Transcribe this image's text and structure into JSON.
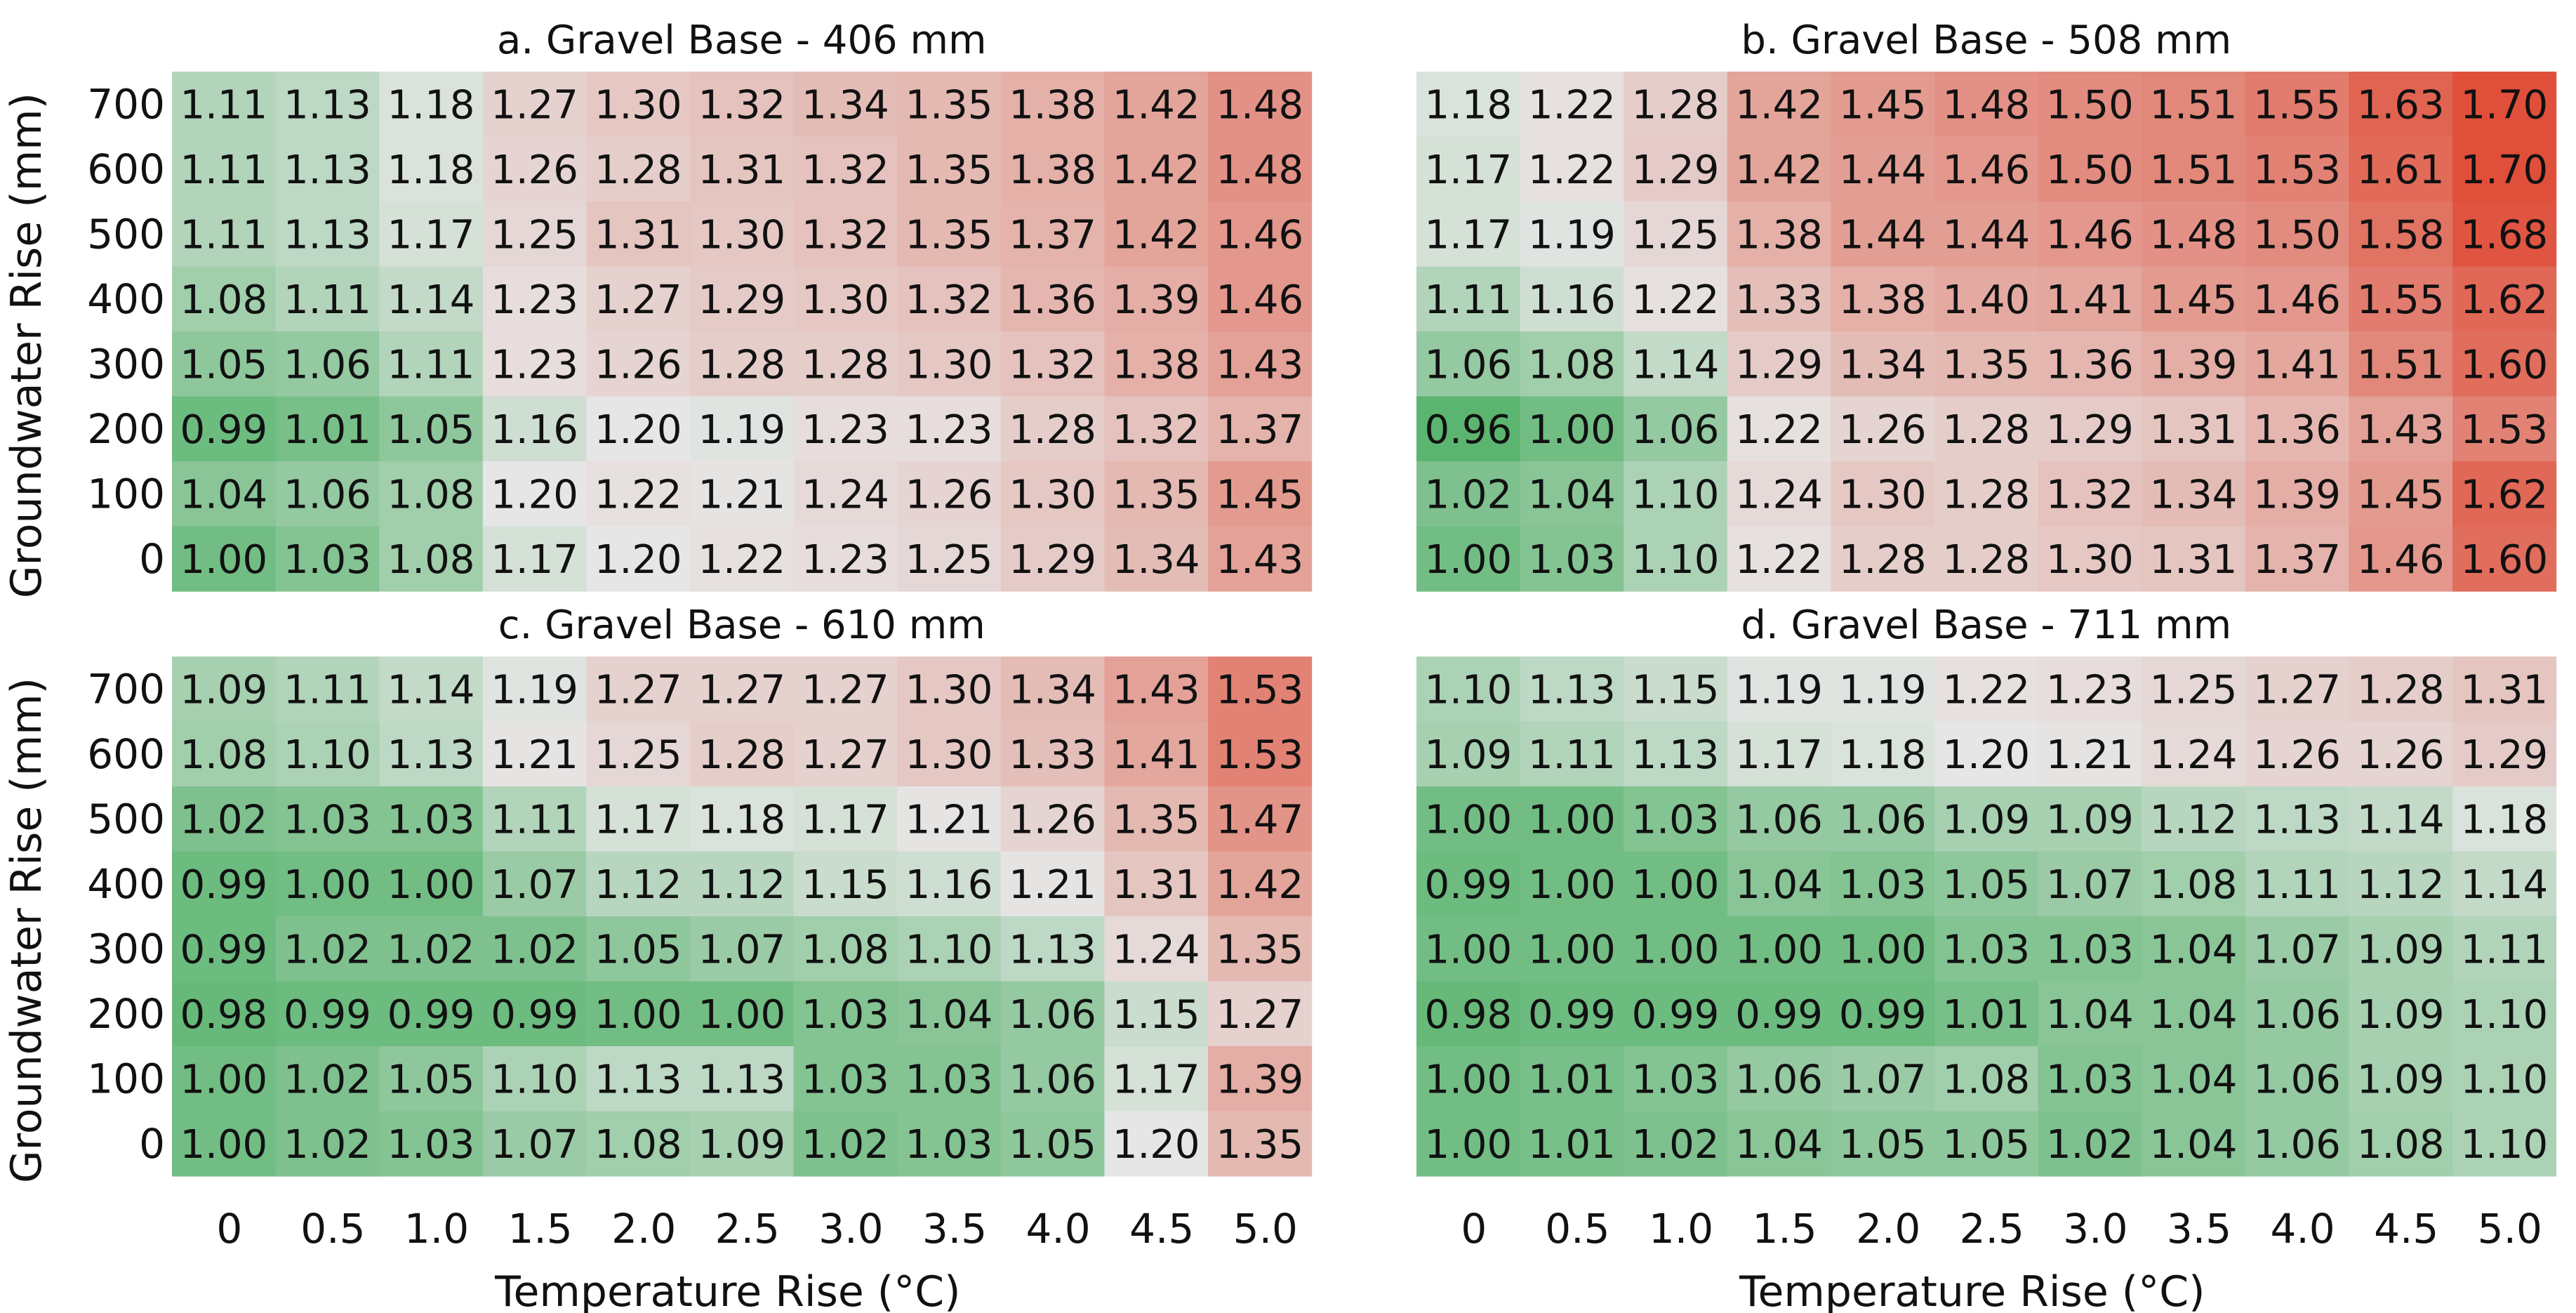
{
  "chart_data": [
    {
      "type": "heatmap",
      "title": "a. Gravel Base - 406 mm",
      "xlabel": "",
      "ylabel": "Groundwater Rise (mm)",
      "x": [
        "0",
        "0.5",
        "1.0",
        "1.5",
        "2.0",
        "2.5",
        "3.0",
        "3.5",
        "4.0",
        "4.5",
        "5.0"
      ],
      "y": [
        "700",
        "600",
        "500",
        "400",
        "300",
        "200",
        "100",
        "0"
      ],
      "values": [
        [
          "1.11",
          "1.13",
          "1.18",
          "1.27",
          "1.30",
          "1.32",
          "1.34",
          "1.35",
          "1.38",
          "1.42",
          "1.48"
        ],
        [
          "1.11",
          "1.13",
          "1.18",
          "1.26",
          "1.28",
          "1.31",
          "1.32",
          "1.35",
          "1.38",
          "1.42",
          "1.48"
        ],
        [
          "1.11",
          "1.13",
          "1.17",
          "1.25",
          "1.31",
          "1.30",
          "1.32",
          "1.35",
          "1.37",
          "1.42",
          "1.46"
        ],
        [
          "1.08",
          "1.11",
          "1.14",
          "1.23",
          "1.27",
          "1.29",
          "1.30",
          "1.32",
          "1.36",
          "1.39",
          "1.46"
        ],
        [
          "1.05",
          "1.06",
          "1.11",
          "1.23",
          "1.26",
          "1.28",
          "1.28",
          "1.30",
          "1.32",
          "1.38",
          "1.43"
        ],
        [
          "0.99",
          "1.01",
          "1.05",
          "1.16",
          "1.20",
          "1.19",
          "1.23",
          "1.23",
          "1.28",
          "1.32",
          "1.37"
        ],
        [
          "1.04",
          "1.06",
          "1.08",
          "1.20",
          "1.22",
          "1.21",
          "1.24",
          "1.26",
          "1.30",
          "1.35",
          "1.45"
        ],
        [
          "1.00",
          "1.03",
          "1.08",
          "1.17",
          "1.20",
          "1.22",
          "1.23",
          "1.25",
          "1.29",
          "1.34",
          "1.43"
        ]
      ]
    },
    {
      "type": "heatmap",
      "title": "b. Gravel Base - 508 mm",
      "xlabel": "",
      "ylabel": "",
      "x": [
        "0",
        "0.5",
        "1.0",
        "1.5",
        "2.0",
        "2.5",
        "3.0",
        "3.5",
        "4.0",
        "4.5",
        "5.0"
      ],
      "y": [
        "700",
        "600",
        "500",
        "400",
        "300",
        "200",
        "100",
        "0"
      ],
      "values": [
        [
          "1.18",
          "1.22",
          "1.28",
          "1.42",
          "1.45",
          "1.48",
          "1.50",
          "1.51",
          "1.55",
          "1.63",
          "1.70"
        ],
        [
          "1.17",
          "1.22",
          "1.29",
          "1.42",
          "1.44",
          "1.46",
          "1.50",
          "1.51",
          "1.53",
          "1.61",
          "1.70"
        ],
        [
          "1.17",
          "1.19",
          "1.25",
          "1.38",
          "1.44",
          "1.44",
          "1.46",
          "1.48",
          "1.50",
          "1.58",
          "1.68"
        ],
        [
          "1.11",
          "1.16",
          "1.22",
          "1.33",
          "1.38",
          "1.40",
          "1.41",
          "1.45",
          "1.46",
          "1.55",
          "1.62"
        ],
        [
          "1.06",
          "1.08",
          "1.14",
          "1.29",
          "1.34",
          "1.35",
          "1.36",
          "1.39",
          "1.41",
          "1.51",
          "1.60"
        ],
        [
          "0.96",
          "1.00",
          "1.06",
          "1.22",
          "1.26",
          "1.28",
          "1.29",
          "1.31",
          "1.36",
          "1.43",
          "1.53"
        ],
        [
          "1.02",
          "1.04",
          "1.10",
          "1.24",
          "1.30",
          "1.28",
          "1.32",
          "1.34",
          "1.39",
          "1.45",
          "1.62"
        ],
        [
          "1.00",
          "1.03",
          "1.10",
          "1.22",
          "1.28",
          "1.28",
          "1.30",
          "1.31",
          "1.37",
          "1.46",
          "1.60"
        ]
      ]
    },
    {
      "type": "heatmap",
      "title": "c. Gravel Base - 610 mm",
      "xlabel": "Temperature Rise (°C)",
      "ylabel": "Groundwater Rise (mm)",
      "x": [
        "0",
        "0.5",
        "1.0",
        "1.5",
        "2.0",
        "2.5",
        "3.0",
        "3.5",
        "4.0",
        "4.5",
        "5.0"
      ],
      "y": [
        "700",
        "600",
        "500",
        "400",
        "300",
        "200",
        "100",
        "0"
      ],
      "values": [
        [
          "1.09",
          "1.11",
          "1.14",
          "1.19",
          "1.27",
          "1.27",
          "1.27",
          "1.30",
          "1.34",
          "1.43",
          "1.53"
        ],
        [
          "1.08",
          "1.10",
          "1.13",
          "1.21",
          "1.25",
          "1.28",
          "1.27",
          "1.30",
          "1.33",
          "1.41",
          "1.53"
        ],
        [
          "1.02",
          "1.03",
          "1.03",
          "1.11",
          "1.17",
          "1.18",
          "1.17",
          "1.21",
          "1.26",
          "1.35",
          "1.47"
        ],
        [
          "0.99",
          "1.00",
          "1.00",
          "1.07",
          "1.12",
          "1.12",
          "1.15",
          "1.16",
          "1.21",
          "1.31",
          "1.42"
        ],
        [
          "0.99",
          "1.02",
          "1.02",
          "1.02",
          "1.05",
          "1.07",
          "1.08",
          "1.10",
          "1.13",
          "1.24",
          "1.35"
        ],
        [
          "0.98",
          "0.99",
          "0.99",
          "0.99",
          "1.00",
          "1.00",
          "1.03",
          "1.04",
          "1.06",
          "1.15",
          "1.27"
        ],
        [
          "1.00",
          "1.02",
          "1.05",
          "1.10",
          "1.13",
          "1.13",
          "1.03",
          "1.03",
          "1.06",
          "1.17",
          "1.39"
        ],
        [
          "1.00",
          "1.02",
          "1.03",
          "1.07",
          "1.08",
          "1.09",
          "1.02",
          "1.03",
          "1.05",
          "1.20",
          "1.35"
        ]
      ]
    },
    {
      "type": "heatmap",
      "title": "d. Gravel Base - 711 mm",
      "xlabel": "Temperature Rise (°C)",
      "ylabel": "",
      "x": [
        "0",
        "0.5",
        "1.0",
        "1.5",
        "2.0",
        "2.5",
        "3.0",
        "3.5",
        "4.0",
        "4.5",
        "5.0"
      ],
      "y": [
        "700",
        "600",
        "500",
        "400",
        "300",
        "200",
        "100",
        "0"
      ],
      "values": [
        [
          "1.10",
          "1.13",
          "1.15",
          "1.19",
          "1.19",
          "1.22",
          "1.23",
          "1.25",
          "1.27",
          "1.28",
          "1.31"
        ],
        [
          "1.09",
          "1.11",
          "1.13",
          "1.17",
          "1.18",
          "1.20",
          "1.21",
          "1.24",
          "1.26",
          "1.26",
          "1.29"
        ],
        [
          "1.00",
          "1.00",
          "1.03",
          "1.06",
          "1.06",
          "1.09",
          "1.09",
          "1.12",
          "1.13",
          "1.14",
          "1.18"
        ],
        [
          "0.99",
          "1.00",
          "1.00",
          "1.04",
          "1.03",
          "1.05",
          "1.07",
          "1.08",
          "1.11",
          "1.12",
          "1.14"
        ],
        [
          "1.00",
          "1.00",
          "1.00",
          "1.00",
          "1.00",
          "1.03",
          "1.03",
          "1.04",
          "1.07",
          "1.09",
          "1.11"
        ],
        [
          "0.98",
          "0.99",
          "0.99",
          "0.99",
          "0.99",
          "1.01",
          "1.04",
          "1.04",
          "1.06",
          "1.09",
          "1.10"
        ],
        [
          "1.00",
          "1.01",
          "1.03",
          "1.06",
          "1.07",
          "1.08",
          "1.03",
          "1.04",
          "1.06",
          "1.09",
          "1.10"
        ],
        [
          "1.00",
          "1.01",
          "1.02",
          "1.04",
          "1.05",
          "1.05",
          "1.02",
          "1.04",
          "1.06",
          "1.08",
          "1.10"
        ]
      ]
    }
  ],
  "colors": {
    "low": "#5bb570",
    "mid": "#e6e6e6",
    "high": "#e04f3a"
  }
}
